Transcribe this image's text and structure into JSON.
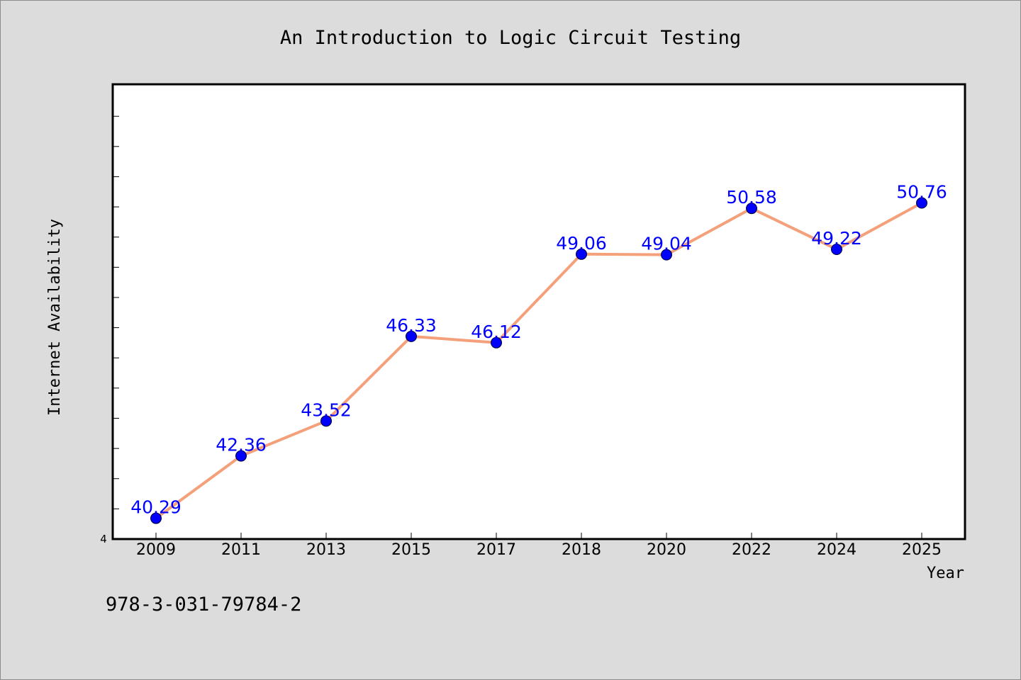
{
  "colors": {
    "background": "#dcdcdc",
    "plot_background": "#ffffff",
    "line": "#f4a07a",
    "marker": "#0000ff",
    "label": "#0000ff"
  },
  "footer": {
    "isbn": "978-3-031-79784-2"
  },
  "chart_data": {
    "type": "line",
    "title": "An Introduction to Logic Circuit Testing",
    "xlabel": "Year",
    "ylabel": "Internet Availability",
    "categories": [
      "2009",
      "2011",
      "2013",
      "2015",
      "2017",
      "2018",
      "2020",
      "2022",
      "2024",
      "2025"
    ],
    "series": [
      {
        "values": [
          40.29,
          42.36,
          43.52,
          46.33,
          46.12,
          49.06,
          49.04,
          50.58,
          49.22,
          50.76
        ],
        "data_labels": [
          "40.29",
          "42.36",
          "43.52",
          "46.33",
          "46.12",
          "49.06",
          "49.04",
          "50.58",
          "49.22",
          "50.76"
        ]
      }
    ],
    "ylim": [
      39.6,
      54.7
    ],
    "y_tick_label": "4",
    "y_minor_tick_count": 14,
    "grid": false,
    "legend": "none"
  }
}
